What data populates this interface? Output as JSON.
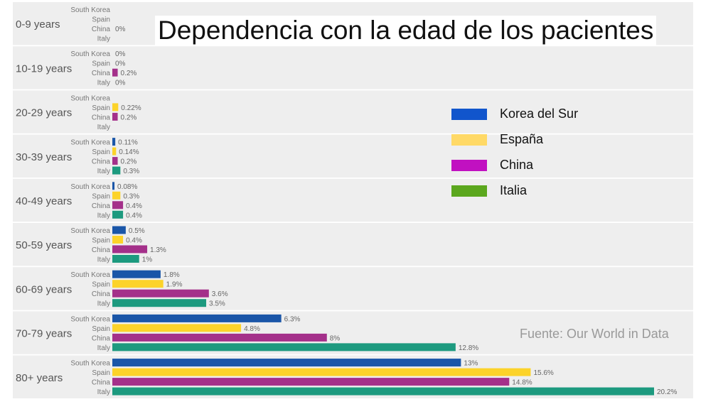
{
  "slide": {
    "title": "Dependencia con la edad de los pacientes",
    "source": "Fuente: Our World in Data"
  },
  "legend": [
    {
      "label": "Korea del Sur",
      "color": "#1155cc"
    },
    {
      "label": "España",
      "color": "#ffd966"
    },
    {
      "label": "China",
      "color": "#c111c1"
    },
    {
      "label": "Italia",
      "color": "#5ba71e"
    }
  ],
  "chart_data": {
    "type": "bar",
    "orientation": "horizontal",
    "categories": [
      "0-9 years",
      "10-19 years",
      "20-29 years",
      "30-39 years",
      "40-49 years",
      "50-59 years",
      "60-69 years",
      "70-79 years",
      "80+ years"
    ],
    "series": [
      {
        "name": "South Korea",
        "color": "#1a56a8",
        "values": [
          null,
          0,
          null,
          0.11,
          0.08,
          0.5,
          1.8,
          6.3,
          13
        ],
        "labels": [
          "",
          "0%",
          "",
          "0.11%",
          "0.08%",
          "0.5%",
          "1.8%",
          "6.3%",
          "13%"
        ]
      },
      {
        "name": "Spain",
        "color": "#fcd32a",
        "values": [
          null,
          0,
          0.22,
          0.14,
          0.3,
          0.4,
          1.9,
          4.8,
          15.6
        ],
        "labels": [
          "",
          "0%",
          "0.22%",
          "0.14%",
          "0.3%",
          "0.4%",
          "1.9%",
          "4.8%",
          "15.6%"
        ]
      },
      {
        "name": "China",
        "color": "#a4308a",
        "values": [
          0,
          0.2,
          0.2,
          0.2,
          0.4,
          1.3,
          3.6,
          8,
          14.8
        ],
        "labels": [
          "0%",
          "0.2%",
          "0.2%",
          "0.2%",
          "0.4%",
          "1.3%",
          "3.6%",
          "8%",
          "14.8%"
        ]
      },
      {
        "name": "Italy",
        "color": "#1d9a7f",
        "values": [
          null,
          0,
          null,
          0.3,
          0.4,
          1,
          3.5,
          12.8,
          20.2
        ],
        "labels": [
          "",
          "0%",
          "",
          "0.3%",
          "0.4%",
          "1%",
          "3.5%",
          "12.8%",
          "20.2%"
        ]
      }
    ],
    "series_labels": [
      "South Korea",
      "Spain",
      "China",
      "Italy"
    ],
    "xlim": [
      0,
      20.2
    ],
    "grid": false,
    "legend_position": "right"
  }
}
